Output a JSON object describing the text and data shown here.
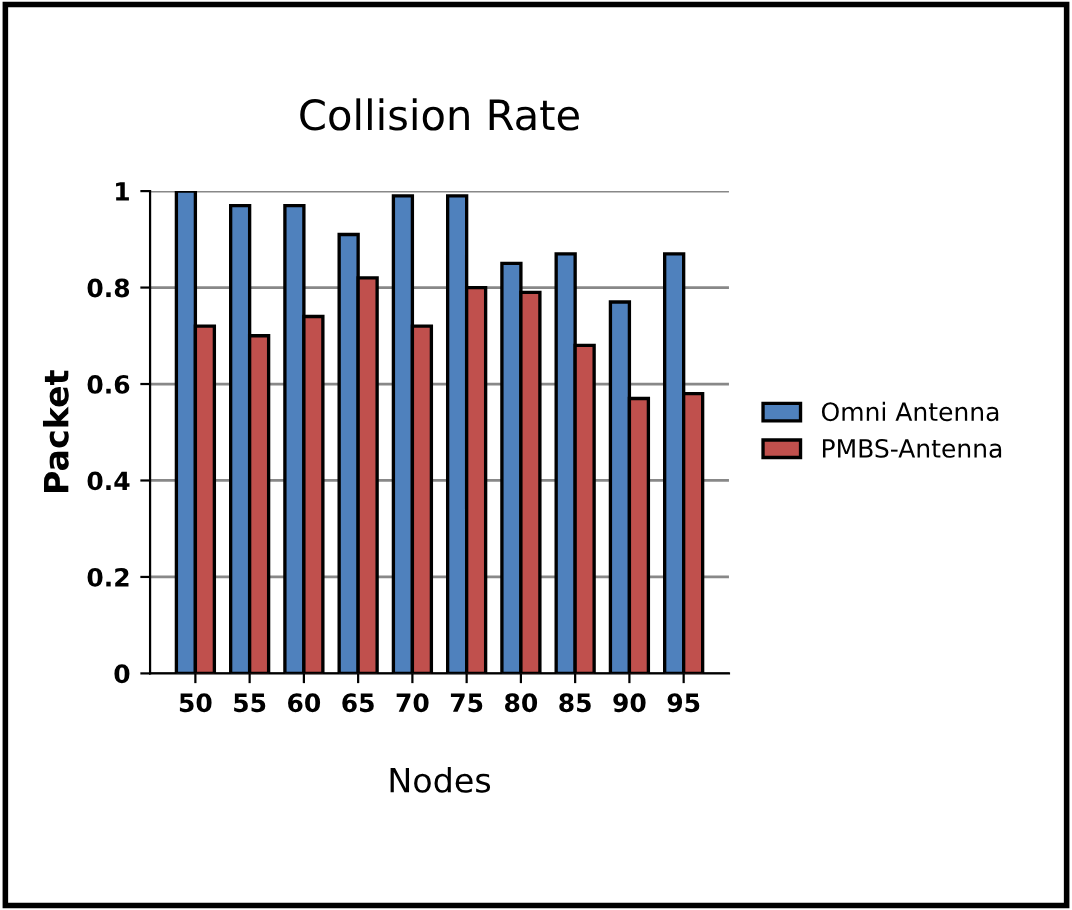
{
  "chart_data": {
    "type": "bar",
    "title": "Collision Rate",
    "xlabel": "Nodes",
    "ylabel": "Packet",
    "categories": [
      "50",
      "55",
      "60",
      "65",
      "70",
      "75",
      "80",
      "85",
      "90",
      "95"
    ],
    "series": [
      {
        "name": "Omni Antenna",
        "color": "#4f81bd",
        "values": [
          1.0,
          0.97,
          0.97,
          0.91,
          0.99,
          0.99,
          0.85,
          0.87,
          0.77,
          0.87
        ]
      },
      {
        "name": "PMBS-Antenna",
        "color": "#c0504d",
        "values": [
          0.72,
          0.7,
          0.74,
          0.82,
          0.72,
          0.8,
          0.79,
          0.68,
          0.57,
          0.58
        ]
      }
    ],
    "ylim": [
      0,
      1
    ],
    "yticks": [
      0,
      0.2,
      0.4,
      0.6,
      0.8,
      1
    ],
    "grid": "y",
    "legend": "right"
  }
}
